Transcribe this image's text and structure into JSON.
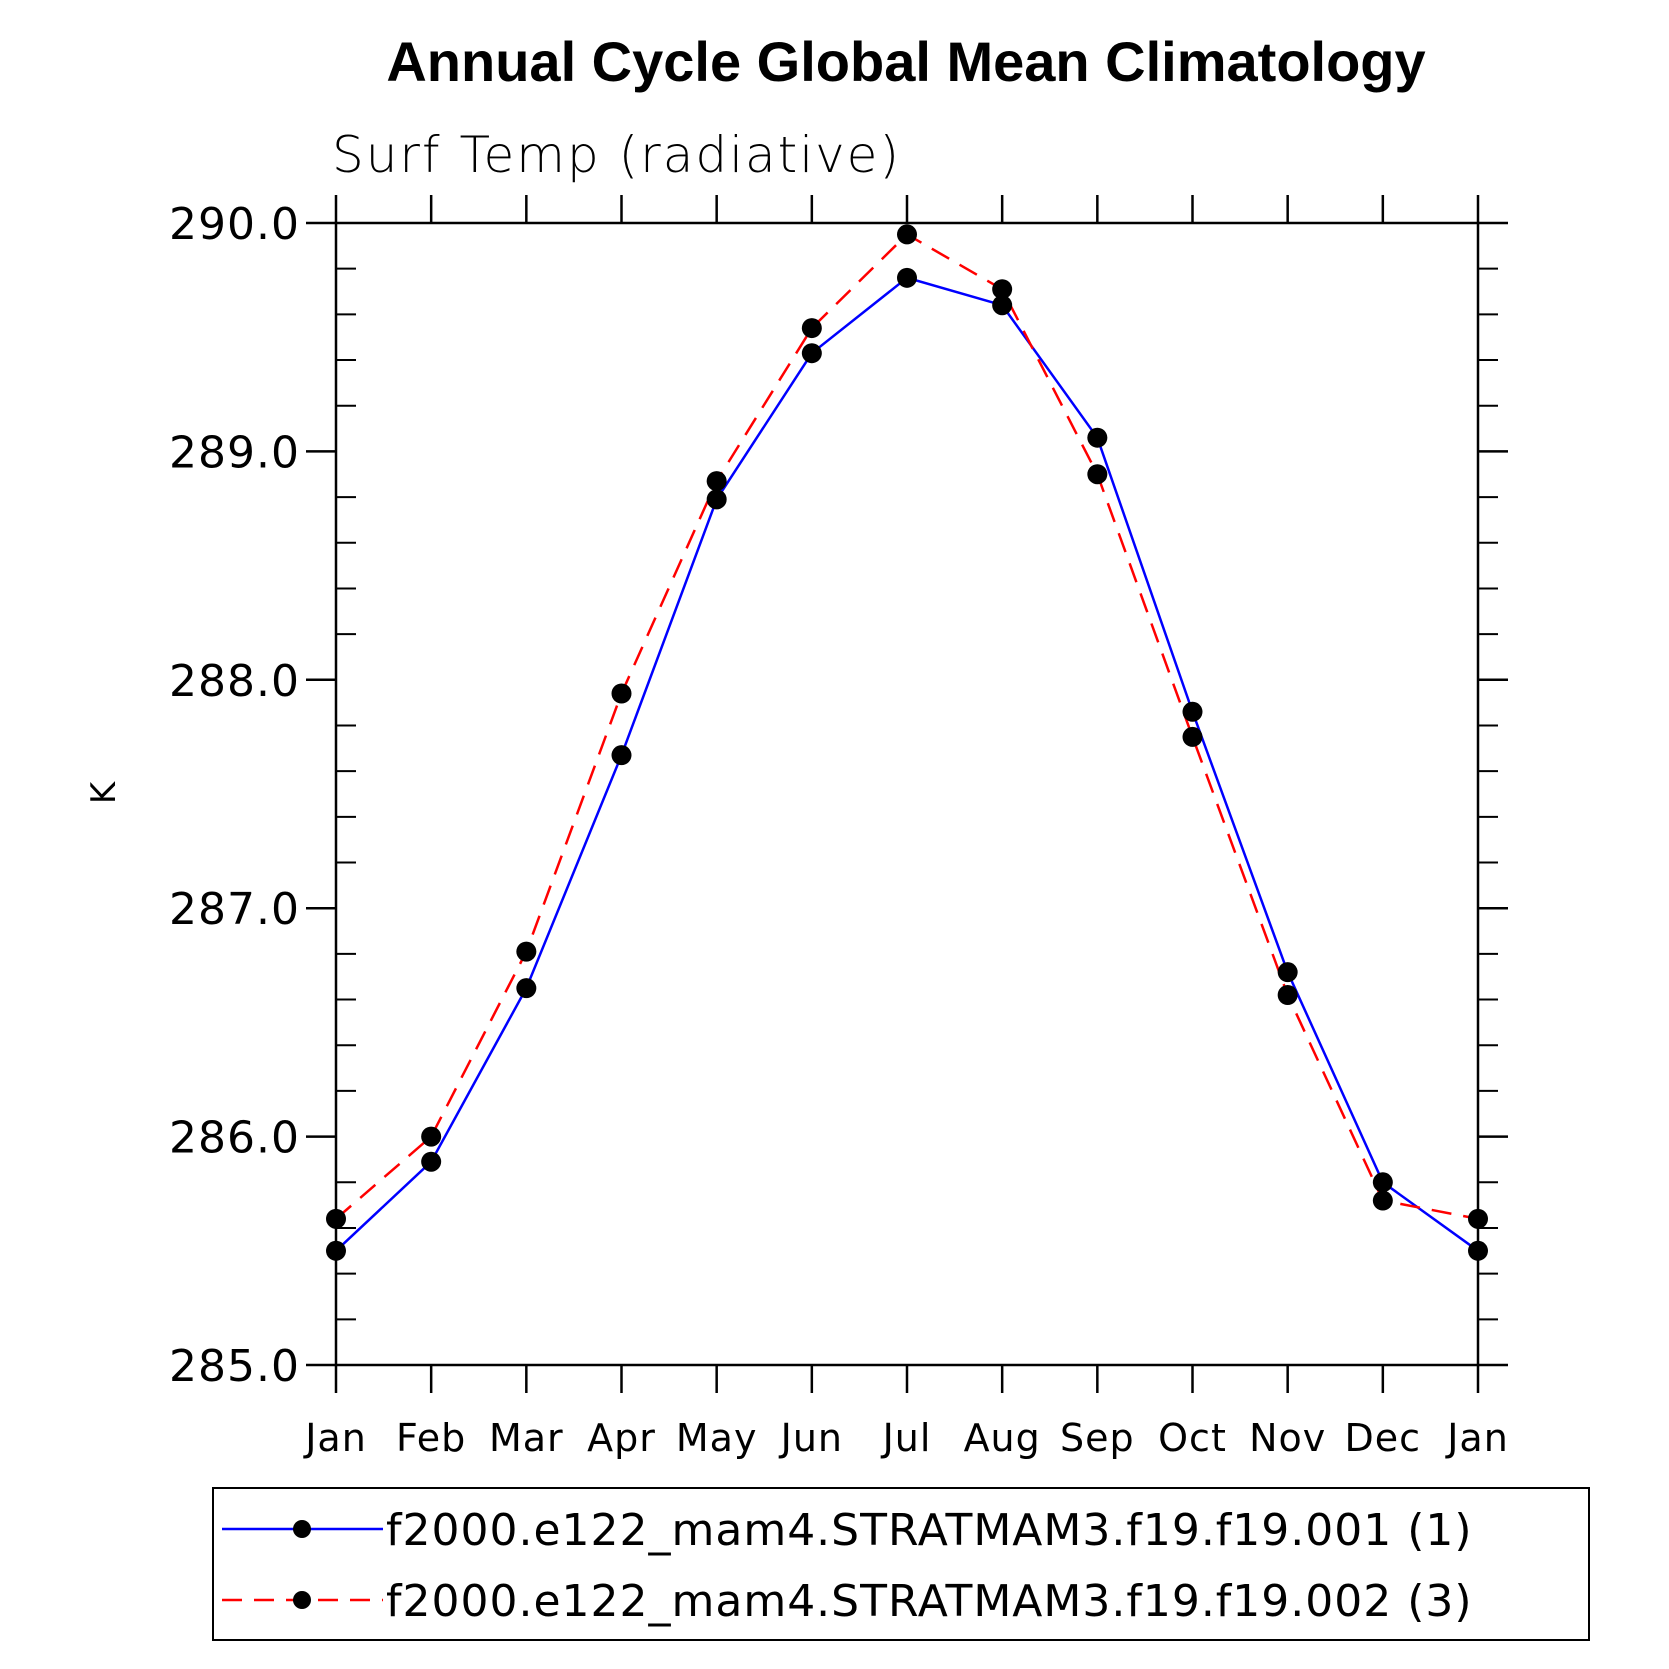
{
  "chart_data": {
    "type": "line",
    "title": "Annual Cycle Global Mean Climatology",
    "subtitle": "Surf Temp (radiative)",
    "xlabel": "",
    "ylabel": "K",
    "categories": [
      "Jan",
      "Feb",
      "Mar",
      "Apr",
      "May",
      "Jun",
      "Jul",
      "Aug",
      "Sep",
      "Oct",
      "Nov",
      "Dec",
      "Jan"
    ],
    "ylim": [
      285.0,
      290.0
    ],
    "yticks": [
      "285.0",
      "286.0",
      "287.0",
      "288.0",
      "289.0",
      "290.0"
    ],
    "grid": false,
    "legend_position": "bottom",
    "series": [
      {
        "name": "f2000.e122_mam4.STRATMAM3.f19.f19.001 (1)",
        "color": "#0000ff",
        "dash": "solid",
        "marker": "filled-circle",
        "values": [
          285.5,
          285.89,
          286.65,
          287.67,
          288.79,
          289.43,
          289.76,
          289.64,
          289.06,
          287.86,
          286.72,
          285.8,
          285.5
        ]
      },
      {
        "name": "f2000.e122_mam4.STRATMAM3.f19.f19.002 (3)",
        "color": "#ff0000",
        "dash": "dashed",
        "marker": "filled-circle",
        "values": [
          285.64,
          286.0,
          286.81,
          287.94,
          288.87,
          289.54,
          289.95,
          289.71,
          288.9,
          287.75,
          286.62,
          285.72,
          285.64
        ]
      }
    ]
  }
}
